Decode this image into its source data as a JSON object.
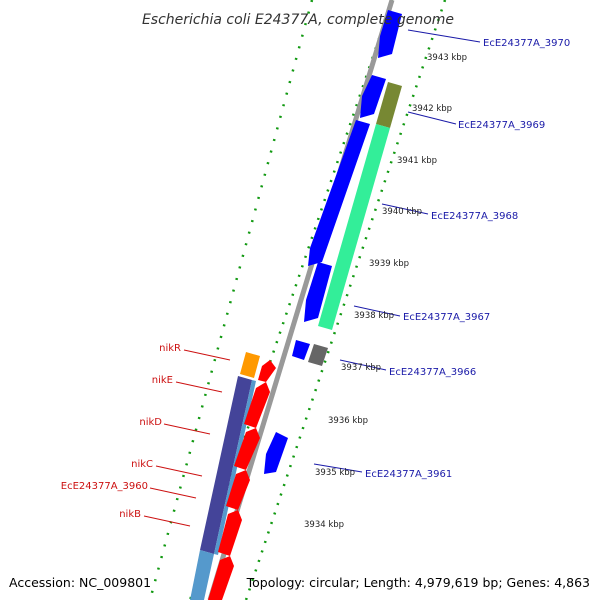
{
  "title": "Escherichia coli E24377A, complete genome",
  "footer": {
    "accession": "Accession: NC_009801",
    "topology": "Topology: circular; Length: 4,979,619 bp; Genes: 4,863"
  },
  "kbp_ticks": [
    "3943 kbp",
    "3942 kbp",
    "3941 kbp",
    "3940 kbp",
    "3939 kbp",
    "3938 kbp",
    "3937 kbp",
    "3936 kbp",
    "3935 kbp",
    "3934 kbp"
  ],
  "right_labels": [
    "EcE24377A_3970",
    "EcE24377A_3969",
    "EcE24377A_3968",
    "EcE24377A_3967",
    "EcE24377A_3966",
    "EcE24377A_3961"
  ],
  "left_labels": [
    "nikR",
    "nikE",
    "nikD",
    "nikC",
    "EcE24377A_3960",
    "nikB"
  ],
  "colors": {
    "forward_cds": "#ff0000",
    "reverse_cds": "#0000ff",
    "ticks": "#119911",
    "backbone": "#999999",
    "right_label": "#1a1aa8",
    "left_label": "#cc1111",
    "teal_feature": "#33ee99",
    "olive_feature": "#778833",
    "orange_feature": "#ff9900",
    "gray_feature": "#666666",
    "navy_feature": "#444499",
    "steel_feature": "#5599cc"
  }
}
